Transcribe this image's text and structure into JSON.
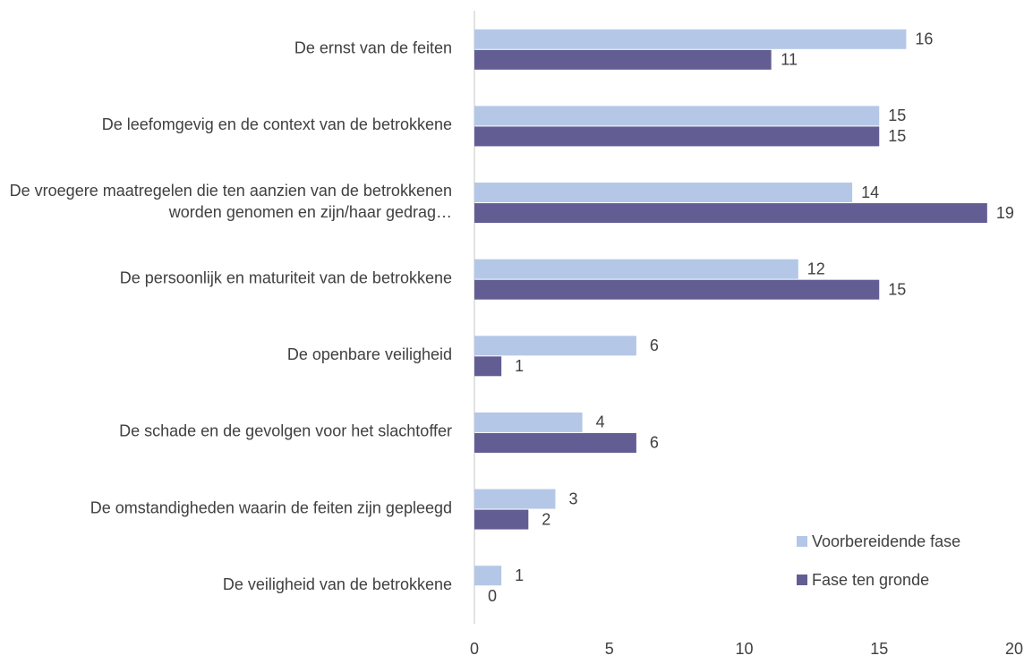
{
  "chart_data": {
    "type": "hbar",
    "categories": [
      "De ernst van de feiten",
      "De leefomgevig en de context van de betrokkene",
      "De vroegere maatregelen die ten aanzien van de betrokkenen worden genomen en zijn/haar gedrag…",
      "De persoonlijk en maturiteit van de betrokkene",
      "De openbare veiligheid",
      "De schade en de gevolgen voor het slachtoffer",
      "De omstandigheden waarin de feiten zijn gepleegd",
      "De veiligheid van de betrokkene"
    ],
    "series": [
      {
        "name": "Voorbereidende fase",
        "color": "#b4c7e7",
        "values": [
          16,
          15,
          14,
          12,
          6,
          4,
          3,
          1
        ]
      },
      {
        "name": "Fase ten gronde",
        "color": "#625e93",
        "values": [
          11,
          15,
          19,
          15,
          1,
          6,
          2,
          0
        ]
      }
    ],
    "xlim": [
      0,
      20
    ],
    "xticks": [
      0,
      5,
      10,
      15,
      20
    ],
    "grid": false,
    "legend": "bottom-right"
  }
}
